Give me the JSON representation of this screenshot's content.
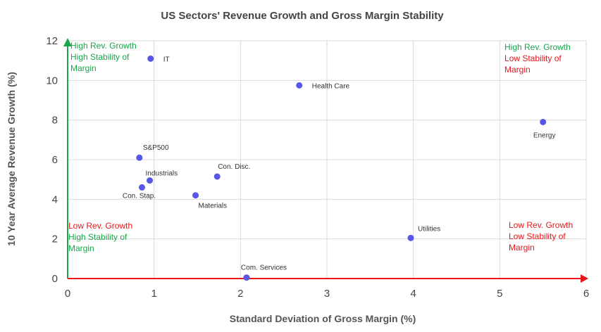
{
  "chart_data": {
    "type": "scatter",
    "title": "US Sectors' Revenue Growth and Gross Margin Stability",
    "xlabel": "Standard Deviation of Gross Margin (%)",
    "ylabel": "10 Year Average Revenue Growth (%)",
    "xlim": [
      0,
      6
    ],
    "ylim": [
      0,
      12
    ],
    "xticks": [
      "0",
      "1",
      "2",
      "3",
      "4",
      "5",
      "6"
    ],
    "yticks": [
      "0",
      "2",
      "4",
      "6",
      "8",
      "10",
      "12"
    ],
    "grid": true,
    "marker_color": "#5757e6",
    "points": [
      {
        "label": "IT",
        "x": 0.96,
        "y": 11.1
      },
      {
        "label": "Health Care",
        "x": 2.68,
        "y": 9.75
      },
      {
        "label": "Energy",
        "x": 5.5,
        "y": 7.9
      },
      {
        "label": "S&P500",
        "x": 0.83,
        "y": 6.1
      },
      {
        "label": "Industrials",
        "x": 0.95,
        "y": 4.95
      },
      {
        "label": "Con. Disc.",
        "x": 1.73,
        "y": 5.15
      },
      {
        "label": "Con. Stap.",
        "x": 0.86,
        "y": 4.6
      },
      {
        "label": "Materials",
        "x": 1.48,
        "y": 4.2
      },
      {
        "label": "Utilities",
        "x": 3.97,
        "y": 2.05
      },
      {
        "label": "Com. Services",
        "x": 2.07,
        "y": 0.05
      }
    ],
    "annotations": [
      {
        "lines": [
          "High Rev. Growth",
          "High Stability of",
          "Margin"
        ],
        "color": "#1aa64a",
        "position": "top-left"
      },
      {
        "lines": [
          "High Rev. Growth"
        ],
        "color": "#1aa64a",
        "position": "top-right"
      },
      {
        "lines": [
          "Low Stability of",
          "Margin"
        ],
        "color": "#e8161b",
        "position": "top-right"
      },
      {
        "lines": [
          "Low Rev. Growth"
        ],
        "color": "#e8161b",
        "position": "bottom-left"
      },
      {
        "lines": [
          "High Stability of",
          "Margin"
        ],
        "color": "#1aa64a",
        "position": "bottom-left"
      },
      {
        "lines": [
          "Low Rev. Growth",
          "Low Stability of",
          "Margin"
        ],
        "color": "#e8161b",
        "position": "bottom-right"
      }
    ],
    "axis_colors": {
      "y_arrow": "#1aa64a",
      "x_arrow": "#e8161b"
    }
  }
}
